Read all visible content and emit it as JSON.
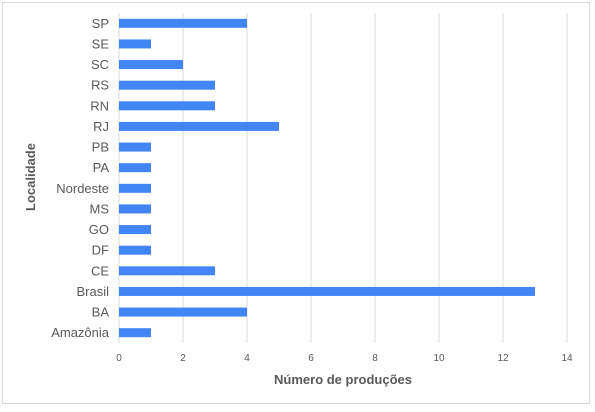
{
  "chart_data": {
    "type": "bar",
    "orientation": "horizontal",
    "categories": [
      "SP",
      "SE",
      "SC",
      "RS",
      "RN",
      "RJ",
      "PB",
      "PA",
      "Nordeste",
      "MS",
      "GO",
      "DF",
      "CE",
      "Brasil",
      "BA",
      "Amazônia"
    ],
    "values": [
      4,
      1,
      2,
      3,
      3,
      5,
      1,
      1,
      1,
      1,
      1,
      1,
      3,
      13,
      4,
      1
    ],
    "xlabel": "Número de produções",
    "ylabel": "Localidade",
    "xlim": [
      0,
      14
    ],
    "xticks": [
      0,
      2,
      4,
      6,
      8,
      10,
      12,
      14
    ],
    "grid": "vertical",
    "legend": "none",
    "bar_color": "#4285f4",
    "grid_color": "#d9d9d9"
  }
}
